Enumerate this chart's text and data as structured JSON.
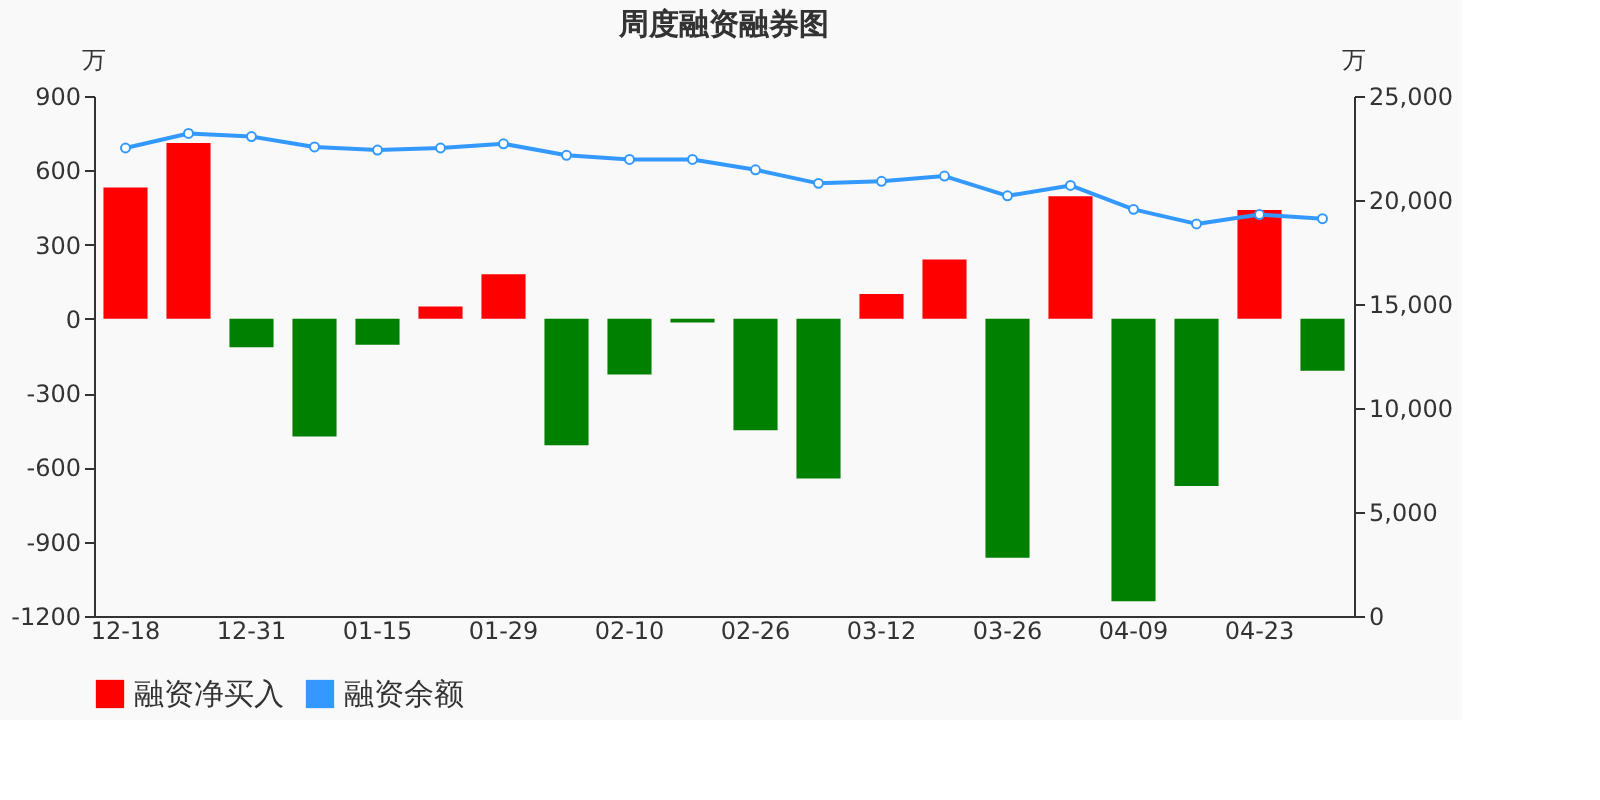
{
  "chart_data": {
    "type": "bar",
    "title": "周度融资融券图",
    "ylabel": "万",
    "y2label": "万",
    "categories": [
      "12-18",
      null,
      "12-31",
      null,
      "01-15",
      null,
      "01-29",
      null,
      "02-10",
      null,
      "02-26",
      null,
      "03-12",
      null,
      "03-26",
      null,
      "04-09",
      null,
      "04-23",
      null
    ],
    "series": [
      {
        "name": "融资净买入",
        "color": "#ff0000",
        "colors": [
          "#ff0000",
          "#ff0000",
          "#008000",
          "#008000",
          "#008000",
          "#ff0000",
          "#ff0000",
          "#008000",
          "#008000",
          "#008000",
          "#008000",
          "#008000",
          "#ff0000",
          "#ff0000",
          "#008000",
          "#ff0000",
          "#008000",
          "#008000",
          "#ff0000",
          "#008000"
        ],
        "values": [
          530,
          710,
          -115,
          -475,
          -105,
          50,
          180,
          -510,
          -225,
          -15,
          -450,
          -645,
          100,
          240,
          -965,
          495,
          -1140,
          -675,
          440,
          -210
        ]
      },
      {
        "name": "融资余额",
        "type": "line",
        "axis": "y2",
        "color": "#3399ff",
        "marker": "circle",
        "values": [
          22500,
          23200,
          23050,
          22550,
          22400,
          22500,
          22700,
          22150,
          21950,
          21950,
          21450,
          20800,
          20900,
          21150,
          20200,
          20700,
          19550,
          18850,
          19300,
          19100
        ]
      }
    ],
    "ylim": [
      -1200,
      900
    ],
    "yticks": [
      -1200,
      -900,
      -600,
      -300,
      0,
      300,
      600,
      900
    ],
    "y2lim": [
      0,
      25000
    ],
    "y2ticks": [
      {
        "value": 0,
        "label": "0"
      },
      {
        "value": 5000,
        "label": "5,000"
      },
      {
        "value": 10000,
        "label": "10,000"
      },
      {
        "value": 15000,
        "label": "15,000"
      },
      {
        "value": 20000,
        "label": "20,000"
      },
      {
        "value": 25000,
        "label": "25,000"
      }
    ],
    "grid": false,
    "legend": "bottom"
  }
}
